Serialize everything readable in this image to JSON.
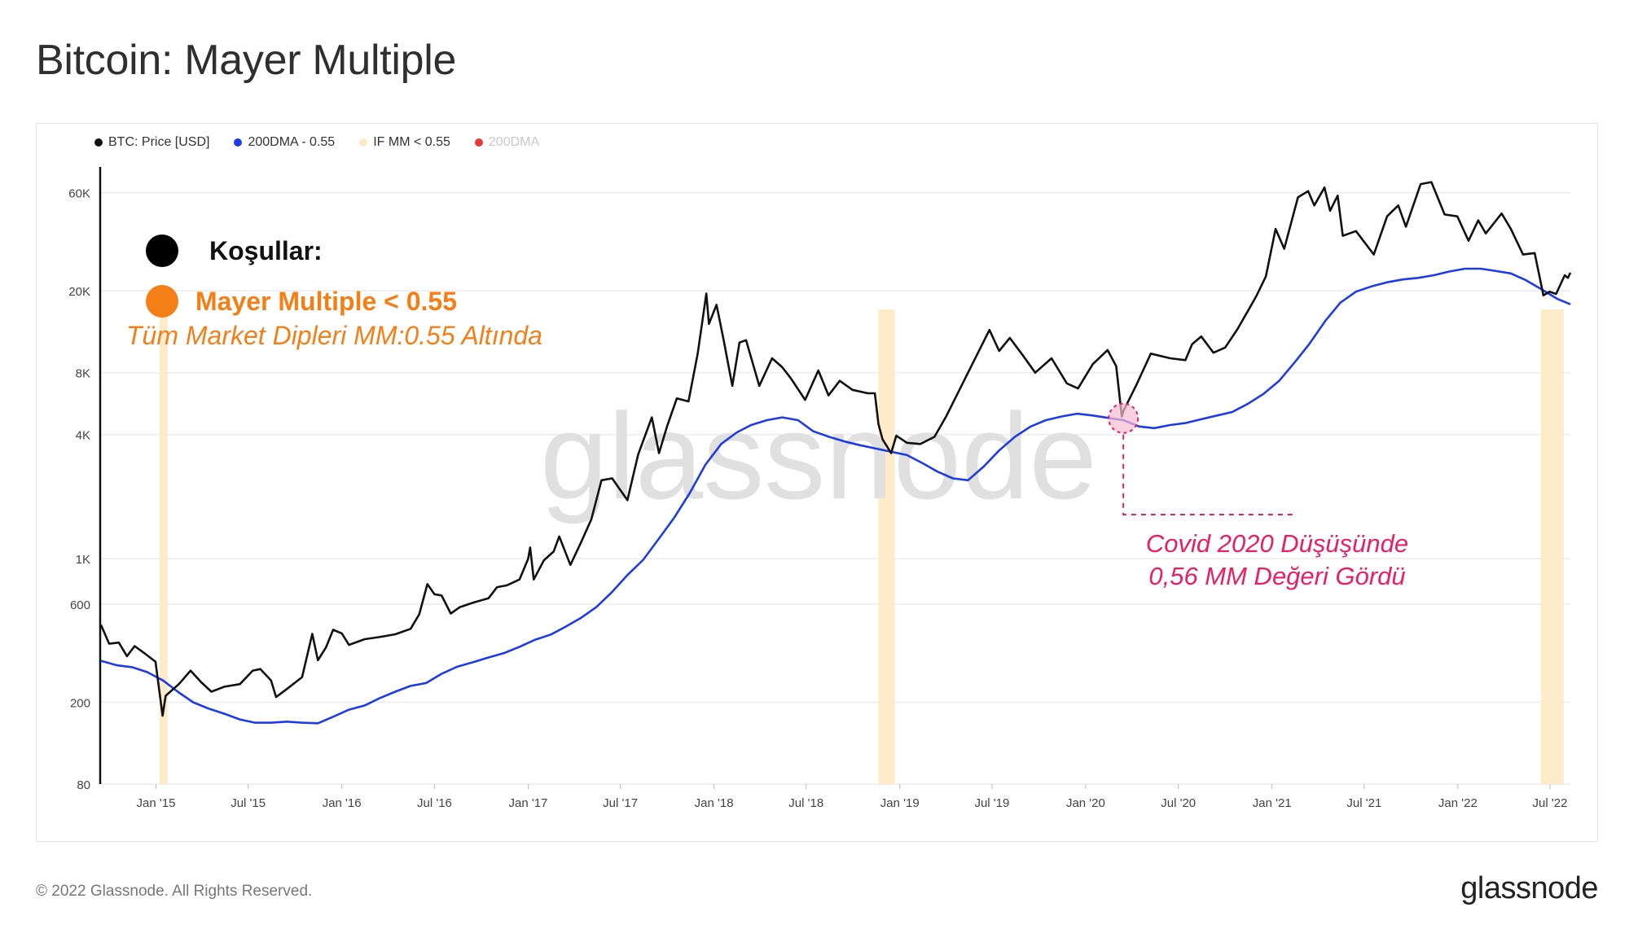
{
  "page_title": "Bitcoin: Mayer Multiple",
  "legend": [
    {
      "label": "BTC: Price [USD]",
      "color": "#111111",
      "active": true
    },
    {
      "label": "200DMA - 0.55",
      "color": "#1e3be8",
      "active": true
    },
    {
      "label": "IF MM < 0.55",
      "color": "#fde9c4",
      "active": true
    },
    {
      "label": "200DMA",
      "color": "#e53935",
      "active": false
    }
  ],
  "annotations": {
    "conditions_label": "Koşullar:",
    "condition_1": "Mayer Multiple < 0.55",
    "note": "Tüm Market Dipleri MM:0.55 Altında",
    "covid_line1": "Covid 2020 Düşüşünde",
    "covid_line2": "0,56 MM Değeri Gördü",
    "covid_date": "2020-03-15"
  },
  "watermark": "glassnode",
  "footer": {
    "copyright": "© 2022 Glassnode. All Rights Reserved.",
    "brand": "glassnode"
  },
  "chart_data": {
    "type": "line",
    "title": "Bitcoin: Mayer Multiple",
    "y_scale": "log",
    "ylim": [
      80,
      80000
    ],
    "y_ticks": [
      80,
      200,
      600,
      1000,
      4000,
      8000,
      20000,
      60000
    ],
    "y_tick_labels": [
      "80",
      "200",
      "600",
      "1K",
      "4K",
      "8K",
      "20K",
      "60K"
    ],
    "xlim": [
      "2014-09-15",
      "2022-08-10"
    ],
    "x_ticks": [
      "2015-01-01",
      "2015-07-01",
      "2016-01-01",
      "2016-07-01",
      "2017-01-01",
      "2017-07-01",
      "2018-01-01",
      "2018-07-01",
      "2019-01-01",
      "2019-07-01",
      "2020-01-01",
      "2020-07-01",
      "2021-01-01",
      "2021-07-01",
      "2022-01-01",
      "2022-07-01"
    ],
    "x_tick_labels": [
      "Jan '15",
      "Jul '15",
      "Jan '16",
      "Jul '16",
      "Jan '17",
      "Jul '17",
      "Jan '18",
      "Jul '18",
      "Jan '19",
      "Jul '19",
      "Jan '20",
      "Jul '20",
      "Jan '21",
      "Jul '21",
      "Jan '22",
      "Jul '22"
    ],
    "grid": true,
    "legend_position": "top-left",
    "series": [
      {
        "name": "BTC: Price [USD]",
        "color": "#111111",
        "points": [
          [
            "2014-09-15",
            475
          ],
          [
            "2014-10-01",
            385
          ],
          [
            "2014-10-20",
            390
          ],
          [
            "2014-11-05",
            335
          ],
          [
            "2014-11-20",
            375
          ],
          [
            "2014-12-10",
            345
          ],
          [
            "2014-12-31",
            315
          ],
          [
            "2015-01-14",
            172
          ],
          [
            "2015-01-20",
            215
          ],
          [
            "2015-02-15",
            245
          ],
          [
            "2015-03-10",
            285
          ],
          [
            "2015-03-31",
            250
          ],
          [
            "2015-04-20",
            225
          ],
          [
            "2015-05-15",
            238
          ],
          [
            "2015-06-15",
            245
          ],
          [
            "2015-07-10",
            285
          ],
          [
            "2015-07-25",
            290
          ],
          [
            "2015-08-15",
            255
          ],
          [
            "2015-08-25",
            212
          ],
          [
            "2015-09-15",
            232
          ],
          [
            "2015-10-15",
            265
          ],
          [
            "2015-11-04",
            430
          ],
          [
            "2015-11-15",
            320
          ],
          [
            "2015-12-01",
            370
          ],
          [
            "2015-12-15",
            450
          ],
          [
            "2016-01-01",
            432
          ],
          [
            "2016-01-15",
            380
          ],
          [
            "2016-02-15",
            405
          ],
          [
            "2016-03-15",
            415
          ],
          [
            "2016-04-15",
            428
          ],
          [
            "2016-05-15",
            455
          ],
          [
            "2016-06-01",
            535
          ],
          [
            "2016-06-17",
            750
          ],
          [
            "2016-07-01",
            670
          ],
          [
            "2016-07-15",
            660
          ],
          [
            "2016-08-02",
            540
          ],
          [
            "2016-08-20",
            580
          ],
          [
            "2016-09-15",
            610
          ],
          [
            "2016-10-15",
            640
          ],
          [
            "2016-11-01",
            725
          ],
          [
            "2016-11-20",
            740
          ],
          [
            "2016-12-15",
            790
          ],
          [
            "2017-01-01",
            995
          ],
          [
            "2017-01-05",
            1130
          ],
          [
            "2017-01-12",
            790
          ],
          [
            "2017-02-01",
            980
          ],
          [
            "2017-02-20",
            1080
          ],
          [
            "2017-03-03",
            1280
          ],
          [
            "2017-03-25",
            930
          ],
          [
            "2017-04-15",
            1200
          ],
          [
            "2017-05-05",
            1550
          ],
          [
            "2017-05-25",
            2400
          ],
          [
            "2017-06-15",
            2450
          ],
          [
            "2017-07-15",
            1920
          ],
          [
            "2017-08-05",
            3200
          ],
          [
            "2017-09-01",
            4850
          ],
          [
            "2017-09-15",
            3250
          ],
          [
            "2017-10-01",
            4400
          ],
          [
            "2017-10-20",
            6000
          ],
          [
            "2017-11-12",
            5800
          ],
          [
            "2017-11-30",
            9900
          ],
          [
            "2017-12-17",
            19400
          ],
          [
            "2017-12-22",
            13800
          ],
          [
            "2018-01-06",
            17100
          ],
          [
            "2018-01-20",
            11500
          ],
          [
            "2018-02-06",
            6900
          ],
          [
            "2018-02-20",
            11200
          ],
          [
            "2018-03-05",
            11500
          ],
          [
            "2018-03-31",
            6900
          ],
          [
            "2018-04-25",
            9400
          ],
          [
            "2018-05-15",
            8500
          ],
          [
            "2018-06-01",
            7500
          ],
          [
            "2018-06-29",
            5900
          ],
          [
            "2018-07-25",
            8200
          ],
          [
            "2018-08-14",
            6200
          ],
          [
            "2018-09-05",
            7300
          ],
          [
            "2018-09-30",
            6600
          ],
          [
            "2018-10-30",
            6350
          ],
          [
            "2018-11-13",
            6350
          ],
          [
            "2018-11-20",
            4500
          ],
          [
            "2018-11-28",
            3800
          ],
          [
            "2018-12-15",
            3250
          ],
          [
            "2018-12-25",
            3950
          ],
          [
            "2019-01-15",
            3650
          ],
          [
            "2019-02-10",
            3600
          ],
          [
            "2019-03-10",
            3900
          ],
          [
            "2019-04-02",
            4900
          ],
          [
            "2019-05-15",
            8000
          ],
          [
            "2019-06-26",
            12900
          ],
          [
            "2019-07-15",
            10200
          ],
          [
            "2019-08-05",
            11800
          ],
          [
            "2019-09-01",
            9600
          ],
          [
            "2019-09-24",
            8000
          ],
          [
            "2019-10-26",
            9400
          ],
          [
            "2019-11-25",
            7100
          ],
          [
            "2019-12-17",
            6700
          ],
          [
            "2020-01-15",
            8800
          ],
          [
            "2020-02-13",
            10300
          ],
          [
            "2020-03-01",
            8600
          ],
          [
            "2020-03-12",
            4900
          ],
          [
            "2020-03-15",
            5200
          ],
          [
            "2020-04-10",
            7000
          ],
          [
            "2020-05-08",
            9900
          ],
          [
            "2020-06-15",
            9400
          ],
          [
            "2020-07-15",
            9200
          ],
          [
            "2020-07-28",
            11000
          ],
          [
            "2020-08-15",
            12000
          ],
          [
            "2020-09-08",
            10000
          ],
          [
            "2020-10-01",
            10600
          ],
          [
            "2020-10-25",
            13000
          ],
          [
            "2020-11-15",
            16000
          ],
          [
            "2020-12-01",
            18800
          ],
          [
            "2020-12-20",
            23500
          ],
          [
            "2021-01-08",
            40000
          ],
          [
            "2021-01-25",
            32000
          ],
          [
            "2021-02-21",
            57000
          ],
          [
            "2021-03-13",
            61000
          ],
          [
            "2021-03-25",
            52000
          ],
          [
            "2021-04-14",
            63500
          ],
          [
            "2021-04-25",
            49000
          ],
          [
            "2021-05-10",
            58000
          ],
          [
            "2021-05-20",
            37000
          ],
          [
            "2021-06-15",
            39000
          ],
          [
            "2021-07-20",
            30000
          ],
          [
            "2021-08-15",
            46000
          ],
          [
            "2021-09-06",
            52000
          ],
          [
            "2021-09-21",
            41000
          ],
          [
            "2021-10-20",
            66000
          ],
          [
            "2021-11-10",
            67500
          ],
          [
            "2021-11-26",
            54000
          ],
          [
            "2021-12-06",
            47000
          ],
          [
            "2021-12-31",
            46000
          ],
          [
            "2022-01-22",
            35000
          ],
          [
            "2022-02-10",
            44000
          ],
          [
            "2022-02-25",
            38000
          ],
          [
            "2022-03-28",
            47500
          ],
          [
            "2022-04-15",
            40000
          ],
          [
            "2022-05-09",
            30000
          ],
          [
            "2022-06-01",
            30500
          ],
          [
            "2022-06-18",
            19000
          ],
          [
            "2022-06-30",
            19800
          ],
          [
            "2022-07-13",
            19300
          ],
          [
            "2022-07-30",
            23800
          ],
          [
            "2022-08-05",
            23100
          ],
          [
            "2022-08-10",
            24500
          ]
        ]
      },
      {
        "name": "200DMA - 0.55",
        "color": "#1e3be8",
        "points": [
          [
            "2014-09-15",
            318
          ],
          [
            "2014-10-15",
            303
          ],
          [
            "2014-11-15",
            296
          ],
          [
            "2014-12-15",
            280
          ],
          [
            "2015-01-15",
            255
          ],
          [
            "2015-02-15",
            223
          ],
          [
            "2015-03-15",
            200
          ],
          [
            "2015-04-15",
            186
          ],
          [
            "2015-05-15",
            176
          ],
          [
            "2015-06-15",
            165
          ],
          [
            "2015-07-15",
            159
          ],
          [
            "2015-08-15",
            159
          ],
          [
            "2015-09-15",
            161
          ],
          [
            "2015-10-15",
            159
          ],
          [
            "2015-11-15",
            158
          ],
          [
            "2015-12-15",
            170
          ],
          [
            "2016-01-15",
            184
          ],
          [
            "2016-02-15",
            193
          ],
          [
            "2016-03-15",
            209
          ],
          [
            "2016-04-15",
            225
          ],
          [
            "2016-05-15",
            240
          ],
          [
            "2016-06-15",
            248
          ],
          [
            "2016-07-15",
            275
          ],
          [
            "2016-08-15",
            298
          ],
          [
            "2016-09-15",
            313
          ],
          [
            "2016-10-15",
            330
          ],
          [
            "2016-11-15",
            347
          ],
          [
            "2016-12-15",
            372
          ],
          [
            "2017-01-15",
            403
          ],
          [
            "2017-02-15",
            427
          ],
          [
            "2017-03-15",
            465
          ],
          [
            "2017-04-15",
            515
          ],
          [
            "2017-05-15",
            580
          ],
          [
            "2017-06-15",
            688
          ],
          [
            "2017-07-15",
            830
          ],
          [
            "2017-08-15",
            985
          ],
          [
            "2017-09-15",
            1250
          ],
          [
            "2017-10-15",
            1580
          ],
          [
            "2017-11-15",
            2090
          ],
          [
            "2017-12-15",
            2850
          ],
          [
            "2018-01-15",
            3600
          ],
          [
            "2018-02-15",
            4100
          ],
          [
            "2018-03-15",
            4450
          ],
          [
            "2018-04-15",
            4700
          ],
          [
            "2018-05-15",
            4850
          ],
          [
            "2018-06-15",
            4700
          ],
          [
            "2018-07-15",
            4150
          ],
          [
            "2018-08-15",
            3900
          ],
          [
            "2018-09-15",
            3700
          ],
          [
            "2018-10-15",
            3550
          ],
          [
            "2018-11-15",
            3420
          ],
          [
            "2018-12-15",
            3300
          ],
          [
            "2019-01-15",
            3180
          ],
          [
            "2019-02-15",
            2900
          ],
          [
            "2019-03-15",
            2650
          ],
          [
            "2019-04-15",
            2450
          ],
          [
            "2019-05-15",
            2400
          ],
          [
            "2019-06-15",
            2800
          ],
          [
            "2019-07-15",
            3350
          ],
          [
            "2019-08-15",
            3900
          ],
          [
            "2019-09-15",
            4380
          ],
          [
            "2019-10-15",
            4700
          ],
          [
            "2019-11-15",
            4900
          ],
          [
            "2019-12-15",
            5050
          ],
          [
            "2020-01-15",
            4950
          ],
          [
            "2020-02-15",
            4820
          ],
          [
            "2020-03-15",
            4700
          ],
          [
            "2020-04-15",
            4380
          ],
          [
            "2020-05-15",
            4300
          ],
          [
            "2020-06-15",
            4450
          ],
          [
            "2020-07-15",
            4550
          ],
          [
            "2020-08-15",
            4750
          ],
          [
            "2020-09-15",
            4950
          ],
          [
            "2020-10-15",
            5150
          ],
          [
            "2020-11-15",
            5650
          ],
          [
            "2020-12-15",
            6300
          ],
          [
            "2021-01-15",
            7300
          ],
          [
            "2021-02-15",
            9000
          ],
          [
            "2021-03-15",
            11000
          ],
          [
            "2021-04-15",
            14200
          ],
          [
            "2021-05-15",
            17500
          ],
          [
            "2021-06-15",
            19800
          ],
          [
            "2021-07-15",
            21000
          ],
          [
            "2021-08-15",
            22000
          ],
          [
            "2021-09-15",
            22700
          ],
          [
            "2021-10-15",
            23100
          ],
          [
            "2021-11-15",
            23800
          ],
          [
            "2021-12-15",
            24800
          ],
          [
            "2022-01-15",
            25600
          ],
          [
            "2022-02-15",
            25600
          ],
          [
            "2022-03-15",
            25000
          ],
          [
            "2022-04-15",
            24300
          ],
          [
            "2022-05-15",
            22500
          ],
          [
            "2022-06-15",
            20300
          ],
          [
            "2022-07-15",
            18300
          ],
          [
            "2022-08-10",
            17200
          ]
        ]
      }
    ],
    "shaded_regions": {
      "name": "IF MM < 0.55",
      "color": "#fde9c4",
      "ranges": [
        [
          "2015-01-08",
          "2015-01-24"
        ],
        [
          "2018-11-20",
          "2018-12-22"
        ],
        [
          "2022-06-13",
          "2022-07-28"
        ]
      ]
    },
    "highlight_points": [
      {
        "name": "Covid 2020",
        "date": "2020-03-15",
        "value": 4800,
        "color": "#e91e63"
      }
    ]
  }
}
